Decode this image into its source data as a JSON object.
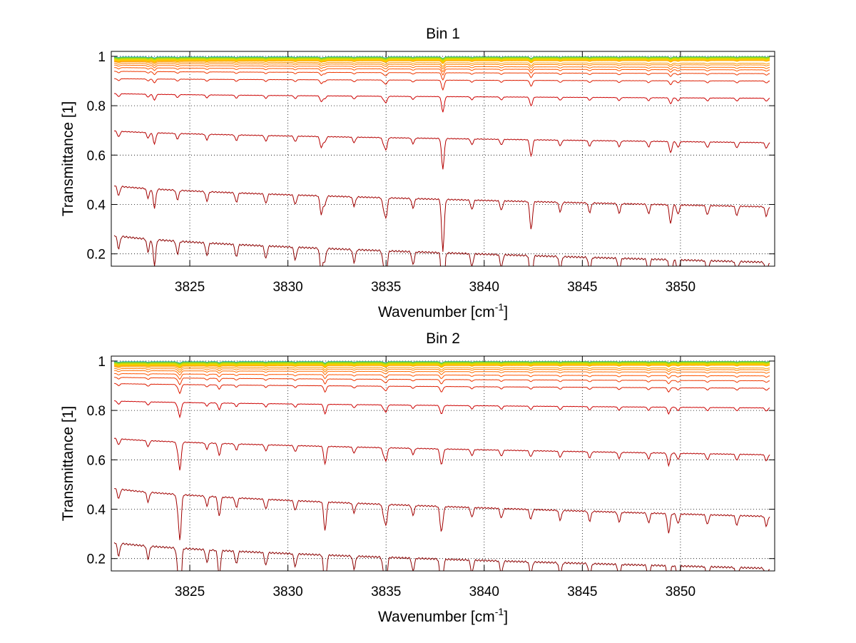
{
  "chart_data": [
    {
      "type": "line",
      "title": "Bin 1",
      "xlabel": "Wavenumber [cm",
      "xlabel_sup": "-1",
      "xlabel_close": "]",
      "ylabel": "Transmittance [1]",
      "xlim": [
        3821,
        3854.8
      ],
      "ylim": [
        0.15,
        1.02
      ],
      "xticks": [
        3825,
        3830,
        3835,
        3840,
        3845,
        3850
      ],
      "yticks": [
        0.2,
        0.4,
        0.6,
        0.8,
        1
      ],
      "ytick_labels": [
        "0.2",
        "0.4",
        "0.6",
        "0.8",
        "1"
      ],
      "grid": true,
      "legend": "none",
      "series_count": 22,
      "series_color_scale": [
        "#8b0000",
        "#cc0000",
        "#ff5500",
        "#ff9900",
        "#ffcc00",
        "#ccdd00",
        "#66cc44",
        "#00aaff"
      ],
      "series_levels": [
        {
          "start": 0.28,
          "end": 0.165
        },
        {
          "start": 0.48,
          "end": 0.39
        },
        {
          "start": 0.7,
          "end": 0.65
        },
        {
          "start": 0.85,
          "end": 0.83
        },
        {
          "start": 0.91,
          "end": 0.9
        },
        {
          "start": 0.94,
          "end": 0.93
        },
        {
          "start": 0.955,
          "end": 0.945
        },
        {
          "start": 0.965,
          "end": 0.955
        },
        {
          "start": 0.972,
          "end": 0.965
        },
        {
          "start": 0.978,
          "end": 0.972
        }
      ],
      "strong_lines": [
        3837.9,
        3831.7,
        3835.0,
        3823.2,
        3842.4,
        3849.5
      ],
      "weak_line_spacing": 0.75
    },
    {
      "type": "line",
      "title": "Bin 2",
      "xlabel": "Wavenumber [cm",
      "xlabel_sup": "-1",
      "xlabel_close": "]",
      "ylabel": "Transmittance [1]",
      "xlim": [
        3821,
        3854.8
      ],
      "ylim": [
        0.15,
        1.02
      ],
      "xticks": [
        3825,
        3830,
        3835,
        3840,
        3845,
        3850
      ],
      "yticks": [
        0.2,
        0.4,
        0.6,
        0.8,
        1
      ],
      "ytick_labels": [
        "0.2",
        "0.4",
        "0.6",
        "0.8",
        "1"
      ],
      "grid": true,
      "legend": "none",
      "series_count": 22,
      "series_color_scale": [
        "#8b0000",
        "#cc0000",
        "#ff5500",
        "#ff9900",
        "#ffcc00",
        "#ccdd00",
        "#66cc44",
        "#00aaff"
      ],
      "series_levels": [
        {
          "start": 0.27,
          "end": 0.16
        },
        {
          "start": 0.49,
          "end": 0.37
        },
        {
          "start": 0.69,
          "end": 0.62
        },
        {
          "start": 0.84,
          "end": 0.81
        },
        {
          "start": 0.91,
          "end": 0.89
        },
        {
          "start": 0.935,
          "end": 0.92
        },
        {
          "start": 0.95,
          "end": 0.94
        },
        {
          "start": 0.962,
          "end": 0.955
        },
        {
          "start": 0.97,
          "end": 0.965
        },
        {
          "start": 0.977,
          "end": 0.972
        }
      ],
      "strong_lines": [
        3824.5,
        3837.8,
        3831.9,
        3835.0,
        3849.4,
        3826.5
      ],
      "weak_line_spacing": 0.75
    }
  ]
}
